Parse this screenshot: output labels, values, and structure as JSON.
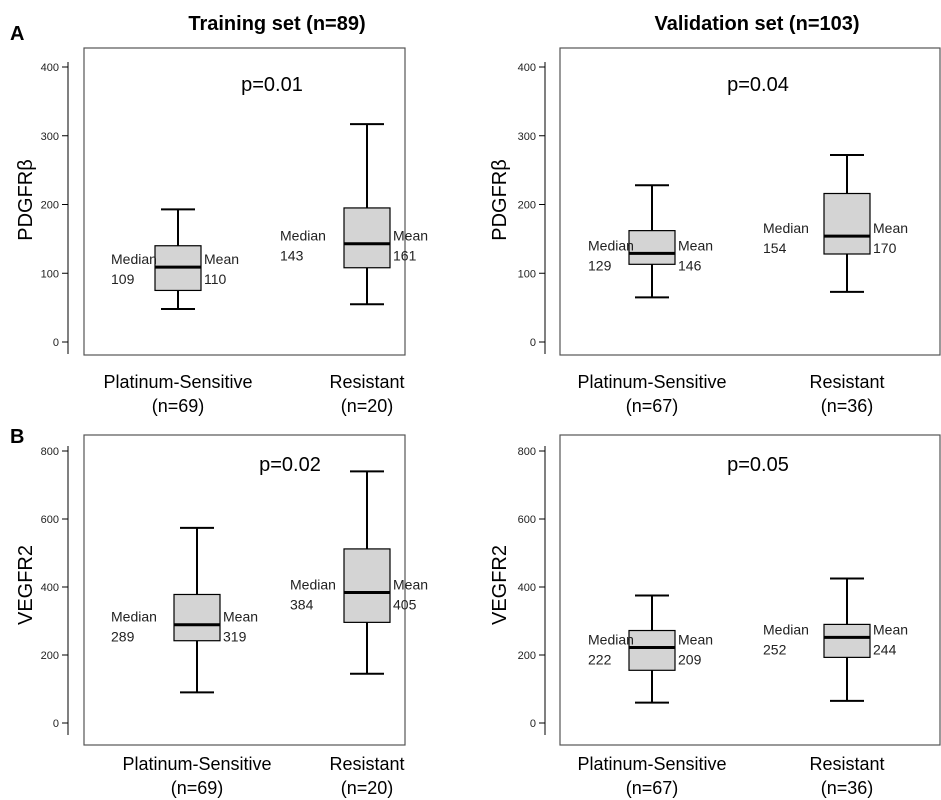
{
  "titles": {
    "training": "Training set (n=89)",
    "validation": "Validation set (n=103)"
  },
  "panel_letters": {
    "A": "A",
    "B": "B"
  },
  "colors": {
    "box_fill": "#d4d4d4",
    "stroke": "#000000",
    "frame": "#555555"
  },
  "chart_data": [
    {
      "type": "boxplot",
      "ylabel": "PDGFRβ",
      "ylim": [
        0,
        400
      ],
      "yticks": [
        0,
        100,
        200,
        300,
        400
      ],
      "annotation": "p=0.01",
      "categories": [
        {
          "label": "Platinum-Sensitive",
          "n_label": "(n=69)",
          "whisker_low": 48,
          "q1": 75,
          "median": 109,
          "q3": 140,
          "whisker_high": 193,
          "median_label": "Median",
          "median_value": "109",
          "mean_label": "Mean",
          "mean_value": "110"
        },
        {
          "label": "Resistant",
          "n_label": "(n=20)",
          "whisker_low": 55,
          "q1": 108,
          "median": 143,
          "q3": 195,
          "whisker_high": 317,
          "median_label": "Median",
          "median_value": "143",
          "mean_label": "Mean",
          "mean_value": "161"
        }
      ]
    },
    {
      "type": "boxplot",
      "ylabel": "PDGFRβ",
      "ylim": [
        0,
        400
      ],
      "yticks": [
        0,
        100,
        200,
        300,
        400
      ],
      "annotation": "p=0.04",
      "categories": [
        {
          "label": "Platinum-Sensitive",
          "n_label": "(n=67)",
          "whisker_low": 65,
          "q1": 113,
          "median": 129,
          "q3": 162,
          "whisker_high": 228,
          "median_label": "Median",
          "median_value": "129",
          "mean_label": "Mean",
          "mean_value": "146"
        },
        {
          "label": "Resistant",
          "n_label": "(n=36)",
          "whisker_low": 73,
          "q1": 128,
          "median": 154,
          "q3": 216,
          "whisker_high": 272,
          "median_label": "Median",
          "median_value": "154",
          "mean_label": "Mean",
          "mean_value": "170"
        }
      ]
    },
    {
      "type": "boxplot",
      "ylabel": "VEGFR2",
      "ylim": [
        0,
        800
      ],
      "yticks": [
        0,
        200,
        400,
        600,
        800
      ],
      "annotation": "p=0.02",
      "categories": [
        {
          "label": "Platinum-Sensitive",
          "n_label": "(n=69)",
          "whisker_low": 90,
          "q1": 242,
          "median": 289,
          "q3": 378,
          "whisker_high": 574,
          "median_label": "Median",
          "median_value": "289",
          "mean_label": "Mean",
          "mean_value": "319"
        },
        {
          "label": "Resistant",
          "n_label": "(n=20)",
          "whisker_low": 145,
          "q1": 296,
          "median": 384,
          "q3": 512,
          "whisker_high": 740,
          "median_label": "Median",
          "median_value": "384",
          "mean_label": "Mean",
          "mean_value": "405"
        }
      ]
    },
    {
      "type": "boxplot",
      "ylabel": "VEGFR2",
      "ylim": [
        0,
        800
      ],
      "yticks": [
        0,
        200,
        400,
        600,
        800
      ],
      "annotation": "p=0.05",
      "categories": [
        {
          "label": "Platinum-Sensitive",
          "n_label": "(n=67)",
          "whisker_low": 60,
          "q1": 155,
          "median": 222,
          "q3": 272,
          "whisker_high": 375,
          "median_label": "Median",
          "median_value": "222",
          "mean_label": "Mean",
          "mean_value": "209"
        },
        {
          "label": "Resistant",
          "n_label": "(n=36)",
          "whisker_low": 65,
          "q1": 193,
          "median": 252,
          "q3": 290,
          "whisker_high": 425,
          "median_label": "Median",
          "median_value": "252",
          "mean_label": "Mean",
          "mean_value": "244"
        }
      ]
    }
  ]
}
